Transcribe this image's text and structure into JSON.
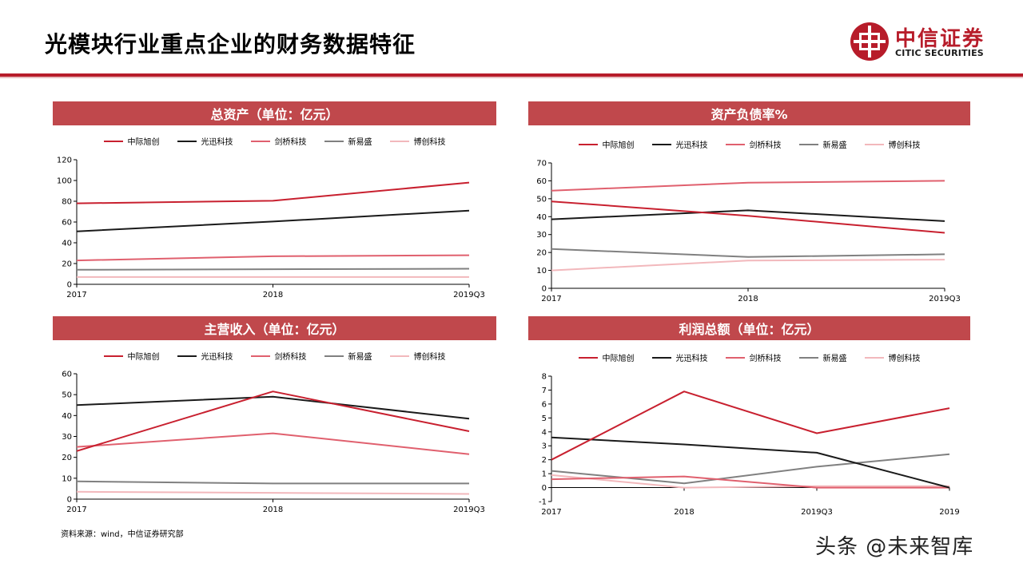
{
  "header": {
    "title": "光模块行业重点企业的财务数据特征"
  },
  "logo": {
    "cn": "中信证券",
    "en": "CITIC SECURITIES"
  },
  "colors": {
    "brand": "#b71c2a",
    "band": "#c0484c"
  },
  "series_colors": {
    "中际旭创": "#c8202f",
    "光迅科技": "#1a1a1a",
    "剑桥科技": "#e0606e",
    "新易盛": "#808080",
    "博创科技": "#f2b8bc"
  },
  "chart_data": [
    {
      "id": "total-assets",
      "type": "line",
      "title": "总资产（单位：亿元）",
      "categories": [
        "2017",
        "2018",
        "2019Q3"
      ],
      "ylim": [
        0,
        120
      ],
      "yticks": [
        0,
        20,
        40,
        60,
        80,
        100,
        120
      ],
      "grid": false,
      "legend": "top",
      "series": [
        {
          "name": "中际旭创",
          "values": [
            78,
            80.5,
            98
          ]
        },
        {
          "name": "光迅科技",
          "values": [
            51,
            60.5,
            71
          ]
        },
        {
          "name": "剑桥科技",
          "values": [
            23,
            27,
            28
          ]
        },
        {
          "name": "新易盛",
          "values": [
            14,
            14.5,
            15
          ]
        },
        {
          "name": "博创科技",
          "values": [
            7,
            7,
            7
          ]
        }
      ]
    },
    {
      "id": "debt-ratio",
      "type": "line",
      "title": "资产负债率%",
      "categories": [
        "2017",
        "2018",
        "2019Q3"
      ],
      "ylim": [
        0,
        70
      ],
      "yticks": [
        0,
        10,
        20,
        30,
        40,
        50,
        60,
        70
      ],
      "grid": false,
      "legend": "top",
      "series": [
        {
          "name": "中际旭创",
          "values": [
            48.5,
            40.5,
            31
          ]
        },
        {
          "name": "光迅科技",
          "values": [
            38.5,
            43.5,
            37.5
          ]
        },
        {
          "name": "剑桥科技",
          "values": [
            54.5,
            59,
            60
          ]
        },
        {
          "name": "新易盛",
          "values": [
            22,
            17.5,
            19
          ]
        },
        {
          "name": "博创科技",
          "values": [
            10,
            15.5,
            16
          ]
        }
      ]
    },
    {
      "id": "revenue",
      "type": "line",
      "title": "主营收入（单位：亿元）",
      "categories": [
        "2017",
        "2018",
        "2019Q3"
      ],
      "ylim": [
        0,
        60
      ],
      "yticks": [
        0,
        10,
        20,
        30,
        40,
        50,
        60
      ],
      "grid": false,
      "legend": "top",
      "series": [
        {
          "name": "中际旭创",
          "values": [
            23,
            51.5,
            32.5
          ]
        },
        {
          "name": "光迅科技",
          "values": [
            45,
            49,
            38.5
          ]
        },
        {
          "name": "剑桥科技",
          "values": [
            25,
            31.5,
            21.5
          ]
        },
        {
          "name": "新易盛",
          "values": [
            8.5,
            7.5,
            7.5
          ]
        },
        {
          "name": "博创科技",
          "values": [
            3.5,
            3,
            2.5
          ]
        }
      ]
    },
    {
      "id": "total-profit",
      "type": "line",
      "title": "利润总额（单位：亿元）",
      "categories": [
        "2017",
        "2018",
        "2019Q3",
        "2019"
      ],
      "ylim": [
        -1,
        8
      ],
      "yticks": [
        -1,
        0,
        1,
        2,
        3,
        4,
        5,
        6,
        7,
        8
      ],
      "grid": false,
      "legend": "top",
      "series": [
        {
          "name": "中际旭创",
          "values": [
            2,
            6.9,
            3.9,
            5.7
          ]
        },
        {
          "name": "光迅科技",
          "values": [
            3.6,
            3.1,
            2.5,
            0
          ]
        },
        {
          "name": "剑桥科技",
          "values": [
            0.6,
            0.8,
            0,
            0
          ]
        },
        {
          "name": "新易盛",
          "values": [
            1.2,
            0.3,
            1.5,
            2.4
          ]
        },
        {
          "name": "博创科技",
          "values": [
            0.9,
            0,
            0.1,
            0.1
          ]
        }
      ]
    }
  ],
  "footer": {
    "source": "资料来源：wind，中信证券研究部",
    "watermark": "头条 @未来智库"
  }
}
